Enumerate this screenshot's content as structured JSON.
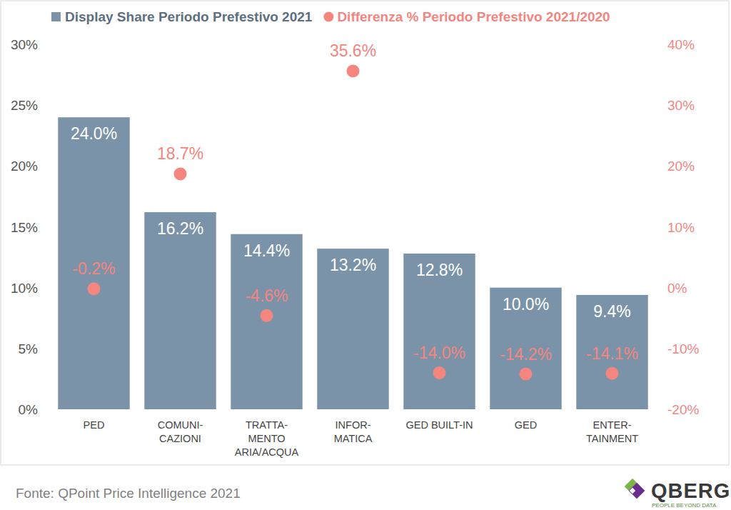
{
  "chart_data": {
    "type": "bar",
    "categories": [
      "PED",
      "COMUNI-\nCAZIONI",
      "TRATTA-\nMENTO\nARIA/ACQUA",
      "INFOR-\nMATICA",
      "GED BUILT-IN",
      "GED",
      "ENTER-\nTAINMENT"
    ],
    "series": [
      {
        "name": "Display Share Periodo Prefestivo 2021",
        "type": "bar",
        "color": "#7b93a8",
        "values": [
          24.0,
          16.2,
          14.4,
          13.2,
          12.8,
          10.0,
          9.4
        ],
        "value_labels": [
          "24.0%",
          "16.2%",
          "14.4%",
          "13.2%",
          "12.8%",
          "10.0%",
          "9.4%"
        ]
      },
      {
        "name": "Differenza % Periodo Prefestivo 2021/2020",
        "type": "scatter",
        "axis": "y2",
        "color": "#f4857f",
        "marker": "circle",
        "values": [
          -0.2,
          18.7,
          -4.6,
          35.6,
          -14.0,
          -14.2,
          -14.1
        ],
        "value_labels": [
          "-0.2%",
          "18.7%",
          "-4.6%",
          "35.6%",
          "-14.0%",
          "-14.2%",
          "-14.1%"
        ]
      }
    ],
    "ylim": [
      0,
      30
    ],
    "yticks": [
      {
        "value": 0,
        "label": "0%"
      },
      {
        "value": 5,
        "label": "5%"
      },
      {
        "value": 10,
        "label": "10%"
      },
      {
        "value": 15,
        "label": "15%"
      },
      {
        "value": 20,
        "label": "20%"
      },
      {
        "value": 25,
        "label": "25%"
      },
      {
        "value": 30,
        "label": "30%"
      }
    ],
    "y2lim": [
      -20,
      40
    ],
    "y2ticks": [
      {
        "value": -20,
        "label": "-20%"
      },
      {
        "value": -10,
        "label": "-10%"
      },
      {
        "value": 0,
        "label": "0%"
      },
      {
        "value": 10,
        "label": "10%"
      },
      {
        "value": 20,
        "label": "20%"
      },
      {
        "value": 30,
        "label": "30%"
      },
      {
        "value": 40,
        "label": "40%"
      }
    ],
    "grid": false,
    "legend": "top",
    "data_labels": true,
    "source": "Fonte: QPoint Price Intelligence 2021",
    "annotations": [
      "QBERG",
      "PEOPLE BEYOND DATA"
    ]
  }
}
